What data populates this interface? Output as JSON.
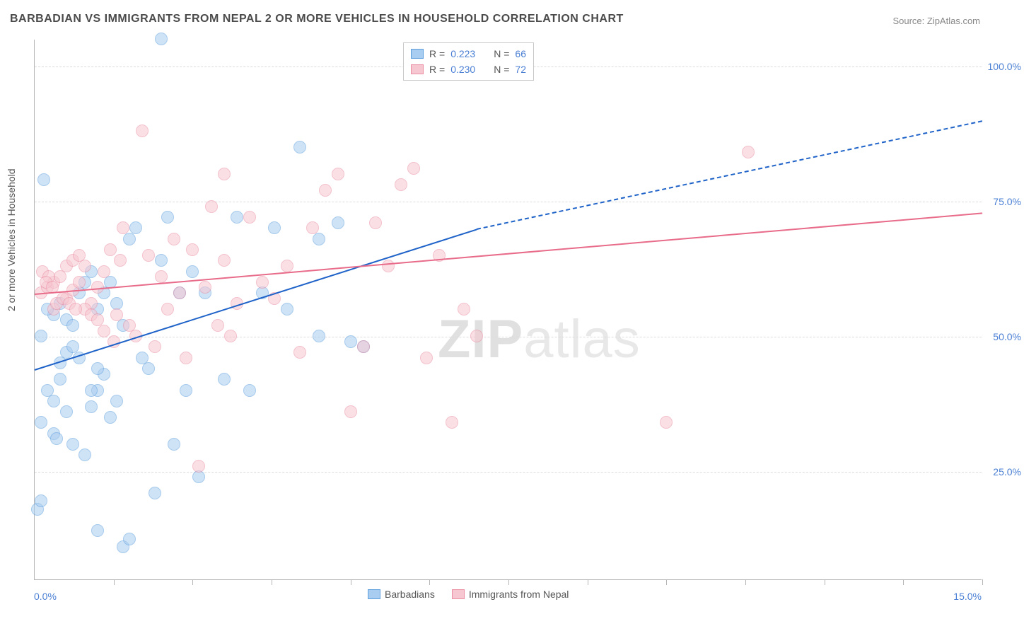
{
  "title": "BARBADIAN VS IMMIGRANTS FROM NEPAL 2 OR MORE VEHICLES IN HOUSEHOLD CORRELATION CHART",
  "source": "Source: ZipAtlas.com",
  "watermark_a": "ZIP",
  "watermark_b": "atlas",
  "chart": {
    "type": "scatter",
    "y_axis_title": "2 or more Vehicles in Household",
    "x_min_label": "0.0%",
    "x_max_label": "15.0%",
    "y_tick_labels": [
      "25.0%",
      "50.0%",
      "75.0%",
      "100.0%"
    ],
    "y_tick_values": [
      25,
      50,
      75,
      100
    ],
    "xlim": [
      0,
      15
    ],
    "ylim": [
      5,
      105
    ],
    "x_tick_positions": [
      1.25,
      2.5,
      3.75,
      5.0,
      6.25,
      7.5,
      8.75,
      10.0,
      11.25,
      12.5,
      13.75,
      15.0
    ],
    "background_color": "#ffffff",
    "grid_color": "#dcdcdc",
    "axis_color": "#b5b5b5",
    "label_color": "#4a7fd4",
    "title_color": "#4b4b4b",
    "title_fontsize": 16,
    "label_fontsize": 14,
    "marker_radius": 9,
    "marker_opacity": 0.55,
    "series": [
      {
        "name": "Barbadians",
        "color_fill": "#a9cdf0",
        "color_stroke": "#5f9fdd",
        "trend_color": "#1f63c9",
        "R": "0.223",
        "N": "66",
        "trend": {
          "x1": 0,
          "y1": 44,
          "x2": 7.0,
          "y2": 70,
          "dash_from_x": 7.0,
          "x3": 15.0,
          "y3": 90
        },
        "points": [
          [
            0.05,
            18
          ],
          [
            0.1,
            19.5
          ],
          [
            0.5,
            53
          ],
          [
            0.3,
            54
          ],
          [
            0.2,
            55
          ],
          [
            0.4,
            56
          ],
          [
            0.1,
            50
          ],
          [
            0.6,
            52
          ],
          [
            0.7,
            58
          ],
          [
            0.8,
            60
          ],
          [
            0.2,
            40
          ],
          [
            0.3,
            38
          ],
          [
            0.5,
            36
          ],
          [
            0.1,
            34
          ],
          [
            0.9,
            62
          ],
          [
            1.0,
            55
          ],
          [
            1.1,
            58
          ],
          [
            1.2,
            60
          ],
          [
            0.15,
            79
          ],
          [
            1.0,
            14
          ],
          [
            1.3,
            56
          ],
          [
            1.4,
            52
          ],
          [
            1.5,
            68
          ],
          [
            1.6,
            70
          ],
          [
            1.7,
            46
          ],
          [
            1.8,
            44
          ],
          [
            1.9,
            21
          ],
          [
            2.0,
            64
          ],
          [
            2.1,
            72
          ],
          [
            2.2,
            30
          ],
          [
            2.3,
            58
          ],
          [
            2.4,
            40
          ],
          [
            2.5,
            62
          ],
          [
            2.6,
            24
          ],
          [
            2.7,
            58
          ],
          [
            0.6,
            30
          ],
          [
            0.8,
            28
          ],
          [
            0.9,
            37
          ],
          [
            1.0,
            40
          ],
          [
            1.1,
            43
          ],
          [
            1.2,
            35
          ],
          [
            1.4,
            11
          ],
          [
            1.5,
            12.5
          ],
          [
            2.0,
            105
          ],
          [
            1.0,
            44
          ],
          [
            3.0,
            42
          ],
          [
            3.2,
            72
          ],
          [
            3.4,
            40
          ],
          [
            3.6,
            58
          ],
          [
            3.8,
            70
          ],
          [
            4.0,
            55
          ],
          [
            4.2,
            85
          ],
          [
            4.5,
            50
          ],
          [
            4.5,
            68
          ],
          [
            4.8,
            71
          ],
          [
            5.0,
            49
          ],
          [
            5.2,
            48
          ],
          [
            0.4,
            45
          ],
          [
            0.5,
            47
          ],
          [
            0.6,
            48
          ],
          [
            0.7,
            46
          ],
          [
            0.3,
            32
          ],
          [
            0.35,
            31
          ],
          [
            0.9,
            40
          ],
          [
            0.4,
            42
          ],
          [
            1.3,
            38
          ]
        ]
      },
      {
        "name": "Immigrants from Nepal",
        "color_fill": "#f7c7d1",
        "color_stroke": "#ea8fa4",
        "trend_color": "#e86b8a",
        "R": "0.230",
        "N": "72",
        "trend": {
          "x1": 0,
          "y1": 58,
          "x2": 15.0,
          "y2": 73
        },
        "points": [
          [
            0.1,
            58
          ],
          [
            0.2,
            59
          ],
          [
            0.3,
            60
          ],
          [
            0.4,
            61
          ],
          [
            0.5,
            57
          ],
          [
            0.6,
            58.5
          ],
          [
            0.7,
            60
          ],
          [
            0.8,
            63
          ],
          [
            0.9,
            56
          ],
          [
            1.0,
            59
          ],
          [
            1.1,
            62
          ],
          [
            1.2,
            66
          ],
          [
            1.3,
            54
          ],
          [
            1.4,
            70
          ],
          [
            1.5,
            52
          ],
          [
            1.6,
            50
          ],
          [
            1.7,
            88
          ],
          [
            1.8,
            65
          ],
          [
            1.9,
            48
          ],
          [
            2.0,
            61
          ],
          [
            2.1,
            55
          ],
          [
            2.2,
            68
          ],
          [
            2.3,
            58
          ],
          [
            2.4,
            46
          ],
          [
            2.5,
            66
          ],
          [
            2.6,
            26
          ],
          [
            2.7,
            59
          ],
          [
            0.5,
            63
          ],
          [
            0.6,
            64
          ],
          [
            0.7,
            65
          ],
          [
            3.0,
            64
          ],
          [
            3.2,
            56
          ],
          [
            3.4,
            72
          ],
          [
            3.6,
            60
          ],
          [
            3.8,
            57
          ],
          [
            4.0,
            63
          ],
          [
            4.2,
            47
          ],
          [
            4.4,
            70
          ],
          [
            4.6,
            77
          ],
          [
            4.8,
            80
          ],
          [
            5.0,
            36
          ],
          [
            5.2,
            48
          ],
          [
            5.4,
            71
          ],
          [
            5.6,
            63
          ],
          [
            5.8,
            78
          ],
          [
            6.0,
            81
          ],
          [
            6.2,
            46
          ],
          [
            6.4,
            65
          ],
          [
            6.6,
            34
          ],
          [
            11.3,
            84
          ],
          [
            6.8,
            55
          ],
          [
            7.0,
            50
          ],
          [
            0.8,
            55
          ],
          [
            0.9,
            54
          ],
          [
            1.0,
            53
          ],
          [
            1.1,
            51
          ],
          [
            1.25,
            49
          ],
          [
            0.3,
            55
          ],
          [
            0.35,
            56
          ],
          [
            0.45,
            57
          ],
          [
            0.55,
            56
          ],
          [
            0.65,
            55
          ],
          [
            0.12,
            62
          ],
          [
            0.22,
            61
          ],
          [
            0.18,
            60
          ],
          [
            0.28,
            59
          ],
          [
            10.0,
            34
          ],
          [
            3.0,
            80
          ],
          [
            2.8,
            74
          ],
          [
            2.9,
            52
          ],
          [
            3.1,
            50
          ],
          [
            1.35,
            64
          ]
        ]
      }
    ]
  },
  "legend_top": {
    "r_label": "R =",
    "n_label": "N ="
  }
}
